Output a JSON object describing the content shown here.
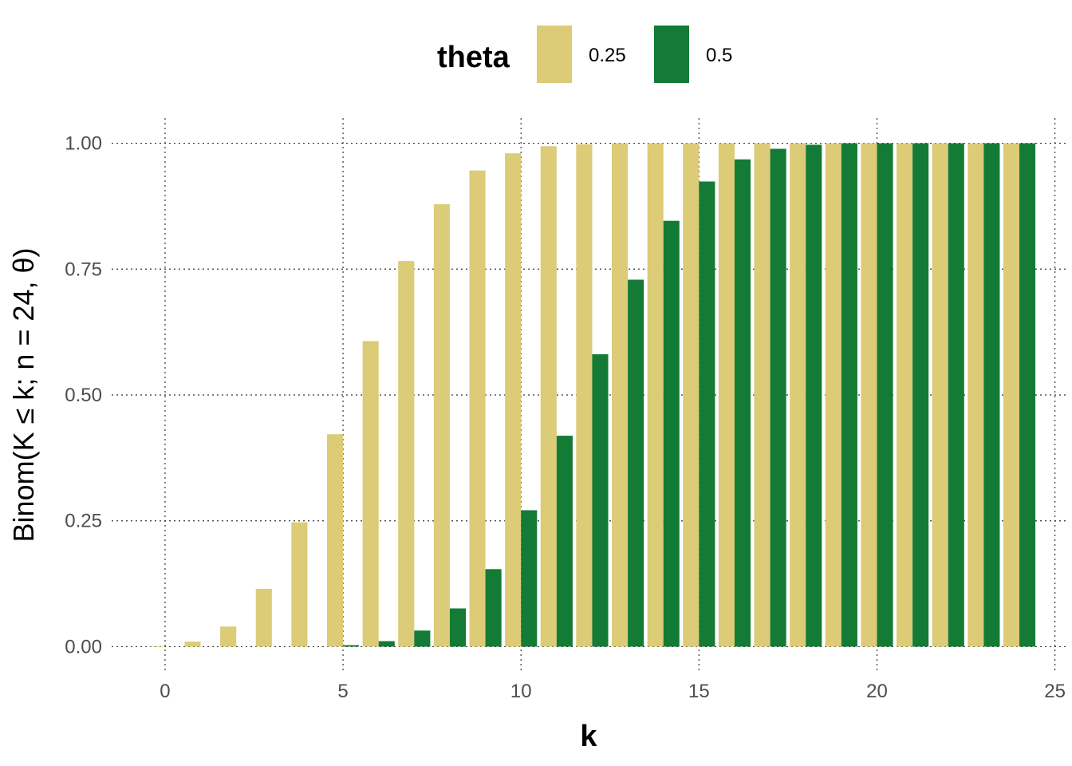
{
  "chart_data": {
    "type": "bar",
    "xlabel": "k",
    "ylabel": "Binom(K ≤ k; n = 24, θ)",
    "x": [
      0,
      1,
      2,
      3,
      4,
      5,
      6,
      7,
      8,
      9,
      10,
      11,
      12,
      13,
      14,
      15,
      16,
      17,
      18,
      19,
      20,
      21,
      22,
      23,
      24
    ],
    "xlim": [
      -1.5,
      25.3
    ],
    "ylim": [
      -0.05,
      1.05
    ],
    "xticks": [
      0,
      5,
      10,
      15,
      20,
      25
    ],
    "xtick_labels": [
      "0",
      "5",
      "10",
      "15",
      "20",
      "25"
    ],
    "yticks": [
      0,
      0.25,
      0.5,
      0.75,
      1.0
    ],
    "ytick_labels": [
      "0.00",
      "0.25",
      "0.50",
      "0.75",
      "1.00"
    ],
    "grid": true,
    "legend": {
      "title": "theta",
      "position": "top"
    },
    "series": [
      {
        "name": "0.25",
        "color": "#dccb77",
        "values": [
          0.001,
          0.01,
          0.04,
          0.115,
          0.247,
          0.422,
          0.607,
          0.766,
          0.879,
          0.946,
          0.98,
          0.994,
          0.998,
          1.0,
          1.0,
          1.0,
          1.0,
          1.0,
          1.0,
          1.0,
          1.0,
          1.0,
          1.0,
          1.0,
          1.0
        ]
      },
      {
        "name": "0.5",
        "color": "#137b36",
        "values": [
          0.0,
          0.0,
          0.0,
          0.0,
          0.0,
          0.003,
          0.011,
          0.032,
          0.076,
          0.154,
          0.271,
          0.419,
          0.581,
          0.729,
          0.846,
          0.924,
          0.968,
          0.989,
          0.997,
          1.0,
          1.0,
          1.0,
          1.0,
          1.0,
          1.0
        ]
      }
    ]
  }
}
